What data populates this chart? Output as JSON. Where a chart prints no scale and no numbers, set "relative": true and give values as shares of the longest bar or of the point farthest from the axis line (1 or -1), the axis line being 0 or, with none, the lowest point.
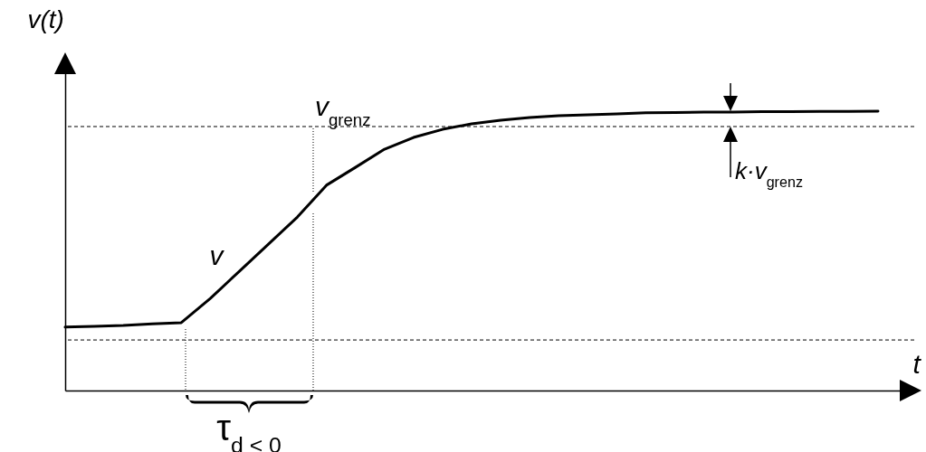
{
  "chart_data": {
    "type": "line",
    "relative": true,
    "xlabel": "t",
    "ylabel": "v(t)",
    "categories": [
      null,
      null,
      null,
      null,
      null,
      null,
      null,
      null,
      null,
      null,
      null,
      null,
      null,
      null,
      null,
      null,
      null,
      null,
      null,
      null,
      null,
      null,
      null,
      null,
      null,
      null,
      null,
      null,
      null
    ],
    "series": [
      {
        "name": "v",
        "color": "#000000",
        "values": [
          0.227,
          0.23,
          0.233,
          0.239,
          0.243,
          0.33,
          0.427,
          0.524,
          0.621,
          0.735,
          0.799,
          0.864,
          0.906,
          0.935,
          0.955,
          0.968,
          0.977,
          0.984,
          0.987,
          0.99,
          0.994,
          0.995,
          0.997,
          0.997,
          0.998,
          0.998,
          0.999,
          0.999,
          1
        ]
      }
    ],
    "ref_lines": [
      {
        "axis": "y",
        "value": 0.945,
        "label": "v$_{grenz}$",
        "line_style": "dashed"
      },
      {
        "axis": "y",
        "value": 0.181,
        "line_style": "dashed"
      }
    ],
    "annotations": [
      "k·v$_{grenz}$",
      "τ$_{d < 0}$"
    ]
  }
}
